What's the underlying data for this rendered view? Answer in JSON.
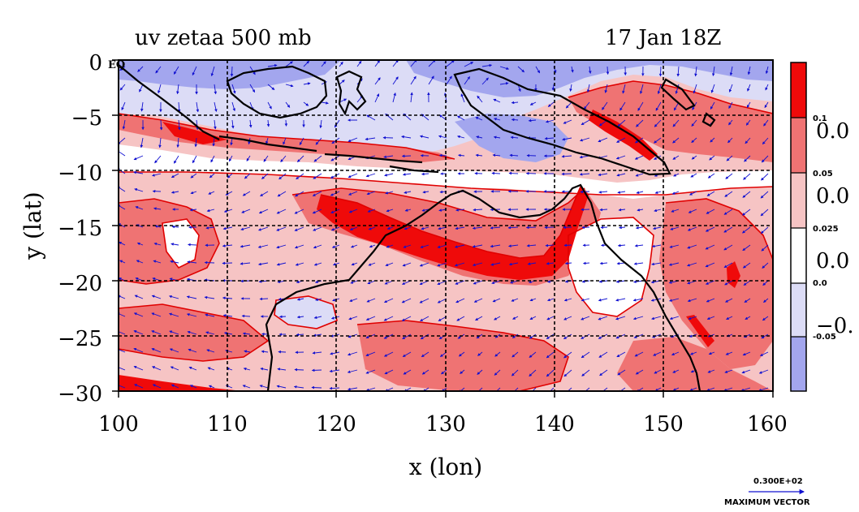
{
  "title_left": "uv zetaa 500 mb",
  "title_right": "17 Jan 18Z",
  "colors": {
    "deep_red": "#ef0a0a",
    "mid_red": "#ef7373",
    "light_red": "#f6c4c4",
    "white": "#ffffff",
    "light_blue": "#dcdcf6",
    "mid_blue": "#a3a6ee",
    "coast": "#000000",
    "contour": "#e00000",
    "vector": "#1010d0"
  },
  "chart_data": {
    "type": "heatmap",
    "title": "uv zetaa 500 mb",
    "subtitle": "17 Jan 18Z",
    "xlabel": "x (lon)",
    "ylabel": "y (lat)",
    "xlim": [
      100,
      160
    ],
    "ylim": [
      -30,
      0
    ],
    "x_ticks": [
      "100",
      "110",
      "120",
      "130",
      "140",
      "150",
      "160"
    ],
    "y_ticks": [
      "0",
      "−5",
      "−10",
      "−15",
      "−20",
      "−25",
      "−30"
    ],
    "y_top_label": "EQ",
    "gridlines_lon": [
      110,
      120,
      130,
      140,
      150
    ],
    "gridlines_lat": [
      -5,
      -10,
      -15,
      -20,
      -25
    ],
    "grid": true,
    "colorbar": {
      "levels": [
        "0.1",
        "0.05",
        "0.025",
        "0.0",
        "-0.05"
      ],
      "overlapping_labels": [
        "0.0",
        "0.0",
        "0.0",
        "−0."
      ],
      "colors": [
        "#ef0a0a",
        "#ef7373",
        "#f6c4c4",
        "#ffffff",
        "#dcdcf6",
        "#a3a6ee"
      ]
    },
    "vector_reference": {
      "value": "0.300E+02",
      "label": "MAXIMUM VECTOR"
    }
  }
}
